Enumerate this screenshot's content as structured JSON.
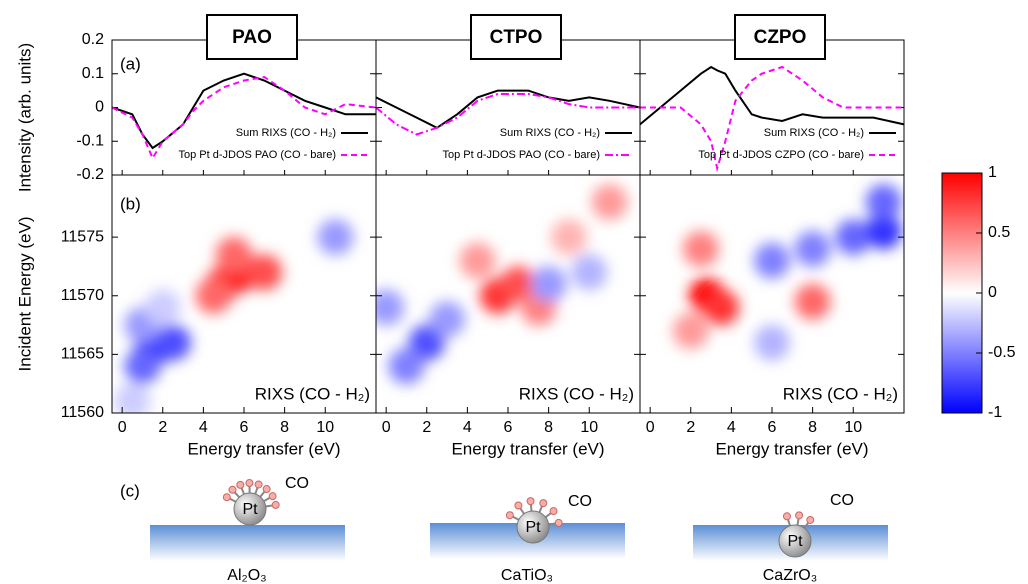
{
  "chart_data": [
    {
      "type": "line",
      "title": "PAO",
      "panel_label": "(a)",
      "ylabel": "Intensity (arb. units)",
      "xlim": [
        -0.5,
        12.5
      ],
      "ylim": [
        -0.2,
        0.2
      ],
      "xticks": [
        0,
        2,
        4,
        6,
        8,
        10
      ],
      "yticks": [
        -0.2,
        -0.1,
        0,
        0.1,
        0.2
      ],
      "x": [
        -0.5,
        0.5,
        1,
        1.5,
        2,
        3,
        3.5,
        4,
        5,
        6,
        7,
        8,
        9,
        10,
        11,
        12.5
      ],
      "series": [
        {
          "name": "Sum RIXS (CO - H₂)",
          "color": "#000000",
          "dash": "none",
          "values": [
            0,
            -0.02,
            -0.08,
            -0.12,
            -0.1,
            -0.05,
            0,
            0.05,
            0.08,
            0.1,
            0.08,
            0.05,
            0.02,
            0,
            -0.02,
            -0.02
          ]
        },
        {
          "name": "Top Pt d-JDOS PAO (CO - bare)",
          "color": "#ff00ff",
          "dash": "6,4",
          "values": [
            0,
            -0.03,
            -0.08,
            -0.15,
            -0.1,
            -0.05,
            -0.01,
            0.02,
            0.06,
            0.08,
            0.09,
            0.05,
            0,
            -0.02,
            0.01,
            0
          ]
        }
      ]
    },
    {
      "type": "line",
      "title": "CTPO",
      "xlim": [
        -0.5,
        12.5
      ],
      "ylim": [
        -0.2,
        0.2
      ],
      "xticks": [
        0,
        2,
        4,
        6,
        8,
        10
      ],
      "yticks": [
        -0.2,
        -0.1,
        0,
        0.1,
        0.2
      ],
      "x": [
        -0.5,
        0.5,
        1.5,
        2.5,
        3.5,
        4.5,
        5.5,
        7,
        8,
        9,
        10,
        11,
        12.5
      ],
      "series": [
        {
          "name": "Sum RIXS (CO - H₂)",
          "color": "#000000",
          "dash": "none",
          "values": [
            0.03,
            0,
            -0.03,
            -0.06,
            -0.02,
            0.03,
            0.05,
            0.05,
            0.03,
            0.02,
            0.03,
            0.02,
            0
          ]
        },
        {
          "name": "Top Pt d-JDOS PAO (CO - bare)",
          "color": "#ff00ff",
          "dash": "8,3,2,3",
          "values": [
            0,
            -0.05,
            -0.08,
            -0.06,
            -0.03,
            0.02,
            0.04,
            0.04,
            0.03,
            0.01,
            0,
            0,
            0
          ]
        }
      ]
    },
    {
      "type": "line",
      "title": "CZPO",
      "xlim": [
        -0.5,
        12.5
      ],
      "ylim": [
        -0.2,
        0.2
      ],
      "xticks": [
        0,
        2,
        4,
        6,
        8,
        10
      ],
      "yticks": [
        -0.2,
        -0.1,
        0,
        0.1,
        0.2
      ],
      "x": [
        -0.5,
        0.5,
        1.5,
        2.5,
        3,
        3.3,
        3.7,
        4.2,
        5,
        5.5,
        6.5,
        7.5,
        8.5,
        9.5,
        11,
        12.5
      ],
      "series": [
        {
          "name": "Sum RIXS (CO - H₂)",
          "color": "#000000",
          "dash": "none",
          "values": [
            -0.05,
            0,
            0.05,
            0.1,
            0.12,
            0.11,
            0.1,
            0.05,
            -0.02,
            -0.03,
            -0.04,
            -0.02,
            -0.03,
            -0.03,
            -0.03,
            -0.05
          ]
        },
        {
          "name": "Top Pt d-JDOS CZPO (CO - bare)",
          "color": "#ff00ff",
          "dash": "6,4",
          "values": [
            0,
            0,
            0,
            -0.05,
            -0.1,
            -0.18,
            -0.1,
            0.02,
            0.08,
            0.1,
            0.12,
            0.08,
            0.03,
            0,
            0,
            0
          ]
        }
      ]
    },
    {
      "type": "heatmap",
      "panel_label": "(b)",
      "ylabel": "Incident Energy (eV)",
      "xlabel": "Energy transfer (eV)",
      "label": "RIXS (CO - H₂)",
      "xlim": [
        -0.5,
        12.5
      ],
      "ylim": [
        11560,
        11580.3
      ],
      "xticks": [
        0,
        2,
        4,
        6,
        8,
        10
      ],
      "yticks": [
        11560,
        11565,
        11570,
        11575
      ],
      "points": [
        {
          "x": 1.5,
          "y": 11565.5,
          "value": -1
        },
        {
          "x": 1,
          "y": 11564,
          "value": -0.6
        },
        {
          "x": 2.5,
          "y": 11566,
          "value": -0.7
        },
        {
          "x": 1,
          "y": 11567.5,
          "value": -0.4
        },
        {
          "x": 2,
          "y": 11569,
          "value": -0.2
        },
        {
          "x": 0.5,
          "y": 11561,
          "value": -0.2
        },
        {
          "x": 5,
          "y": 11571,
          "value": 0.8
        },
        {
          "x": 6,
          "y": 11572,
          "value": 0.9
        },
        {
          "x": 7,
          "y": 11572,
          "value": 0.7
        },
        {
          "x": 5.5,
          "y": 11573.5,
          "value": 0.6
        },
        {
          "x": 4.5,
          "y": 11570,
          "value": 0.6
        },
        {
          "x": 10.5,
          "y": 11575,
          "value": -0.4
        }
      ]
    },
    {
      "type": "heatmap",
      "xlabel": "Energy transfer (eV)",
      "label": "RIXS (CO - H₂)",
      "xlim": [
        -0.5,
        12.5
      ],
      "ylim": [
        11560,
        11580.3
      ],
      "xticks": [
        0,
        2,
        4,
        6,
        8,
        10
      ],
      "yticks": [
        11560,
        11565,
        11570,
        11575
      ],
      "points": [
        {
          "x": 5.5,
          "y": 11570,
          "value": 0.8
        },
        {
          "x": 6.5,
          "y": 11571,
          "value": 0.7
        },
        {
          "x": 7.5,
          "y": 11569,
          "value": 0.5
        },
        {
          "x": 4.5,
          "y": 11573,
          "value": 0.4
        },
        {
          "x": 11,
          "y": 11578,
          "value": 0.4
        },
        {
          "x": 9,
          "y": 11575,
          "value": 0.3
        },
        {
          "x": 2,
          "y": 11566,
          "value": -0.7
        },
        {
          "x": 1,
          "y": 11564,
          "value": -0.5
        },
        {
          "x": 3,
          "y": 11568,
          "value": -0.4
        },
        {
          "x": 0,
          "y": 11569,
          "value": -0.4
        },
        {
          "x": 8,
          "y": 11571,
          "value": -0.4
        },
        {
          "x": 10,
          "y": 11572,
          "value": -0.3
        }
      ]
    },
    {
      "type": "heatmap",
      "xlabel": "Energy transfer (eV)",
      "label": "RIXS (CO - H₂)",
      "xlim": [
        -0.5,
        12.5
      ],
      "ylim": [
        11560,
        11580.3
      ],
      "xticks": [
        0,
        2,
        4,
        6,
        8,
        10
      ],
      "yticks": [
        11560,
        11565,
        11570,
        11575
      ],
      "points": [
        {
          "x": 2.8,
          "y": 11570,
          "value": 1
        },
        {
          "x": 3.5,
          "y": 11569,
          "value": 0.8
        },
        {
          "x": 2.5,
          "y": 11574,
          "value": 0.5
        },
        {
          "x": 8,
          "y": 11569.5,
          "value": 0.6
        },
        {
          "x": 2,
          "y": 11567,
          "value": 0.4
        },
        {
          "x": 6,
          "y": 11573,
          "value": -0.5
        },
        {
          "x": 8,
          "y": 11574,
          "value": -0.5
        },
        {
          "x": 10,
          "y": 11575,
          "value": -0.6
        },
        {
          "x": 11.5,
          "y": 11575.5,
          "value": -0.8
        },
        {
          "x": 11.5,
          "y": 11578,
          "value": -0.6
        },
        {
          "x": 6,
          "y": 11566,
          "value": -0.3
        }
      ]
    }
  ],
  "colorbar": {
    "lim": [
      -1,
      1
    ],
    "ticks": [
      -1,
      -0.5,
      0,
      0.5,
      1
    ]
  },
  "diagram": {
    "label": "(c)",
    "particle": "Pt",
    "adsorbate": "CO",
    "substrates": [
      "Al₂O₃",
      "CaTiO₃",
      "CaZrO₃"
    ]
  }
}
